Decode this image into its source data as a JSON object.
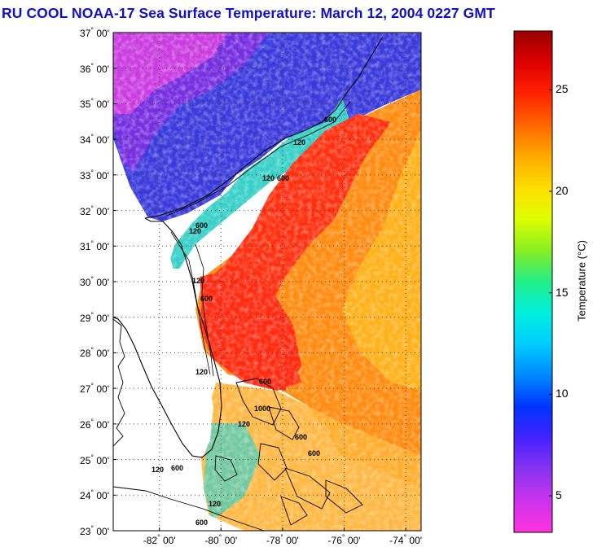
{
  "title": "RU COOL  NOAA-17  Sea Surface Temperature:  March 12, 2004 0227 GMT",
  "map": {
    "lat_ticks": [
      "37",
      "36",
      "35",
      "34",
      "33",
      "32",
      "31",
      "30",
      "29",
      "28",
      "27",
      "26",
      "25",
      "24",
      "23"
    ],
    "lat_minutes": "00'",
    "lon_ticks": [
      "-82",
      "-80",
      "-78",
      "-76",
      "-74"
    ],
    "lon_minutes": "00'",
    "lat_range": [
      23,
      37
    ],
    "lon_range": [
      -83.5,
      -73.5
    ],
    "contour_labels": [
      "120",
      "600",
      "120",
      "600",
      "120",
      "600",
      "120",
      "600",
      "120",
      "600",
      "1000",
      "120",
      "600",
      "600",
      "120",
      "600",
      "120",
      "600"
    ]
  },
  "colorbar": {
    "label": "Temperature (°C)",
    "ticks": [
      "25",
      "20",
      "15",
      "10",
      "5"
    ],
    "range": [
      3.2,
      27.9
    ],
    "colors": [
      "#ff33dd",
      "#cc33ee",
      "#8833ee",
      "#4422ff",
      "#0033ff",
      "#0088ff",
      "#00ccff",
      "#00eedd",
      "#22ee88",
      "#88ee22",
      "#ddff00",
      "#ffdd00",
      "#ffaa00",
      "#ff6600",
      "#ff2200",
      "#dd0000",
      "#990000"
    ]
  },
  "water_colors": {
    "cold_north": "#3a3adc",
    "cold_purple": "#8a2be2",
    "magenta": "#e040e0",
    "shelf_cyan": "#36d0c8",
    "gulfstream_red": "#ff3010",
    "warm_orange": "#ff8c10",
    "warm_yellow": "#ffd020",
    "land": "#ffffff"
  }
}
